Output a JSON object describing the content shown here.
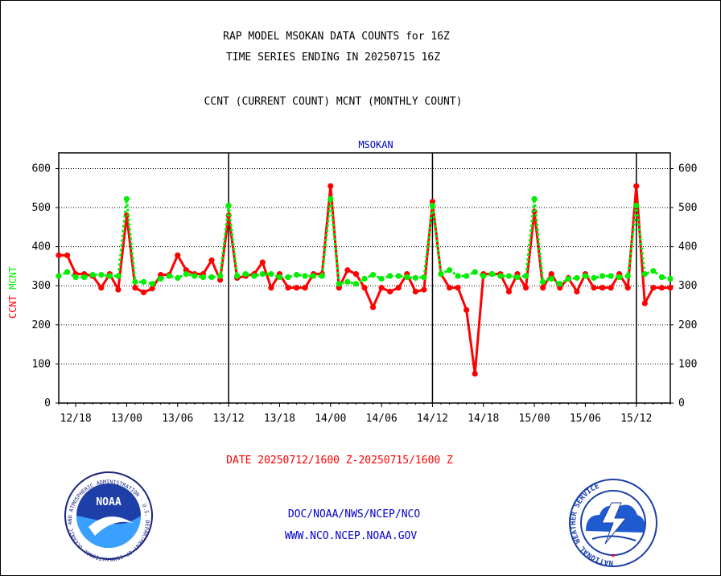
{
  "header": {
    "title_line1": "RAP MODEL MSOKAN DATA COUNTS for 16Z",
    "title_line2": "TIME SERIES ENDING IN 20250715 16Z",
    "subtitle": "CCNT (CURRENT COUNT) MCNT (MONTHLY COUNT)"
  },
  "footer": {
    "date_range": "DATE 20250712/1600 Z-20250715/1600 Z",
    "link1": "DOC/NOAA/NWS/NCEP/NCO",
    "link2": "WWW.NCO.NCEP.NOAA.GOV"
  },
  "logos": {
    "noaa_text": "NOAA",
    "noaa_ring": "NATIONAL OCEANIC AND ATMOSPHERIC ADMINISTRATION · U.S. DEPARTMENT OF COMMERCE ·",
    "nws_ring": "NATIONAL WEATHER SERVICE"
  },
  "colors": {
    "ccnt": "#ff0000",
    "mcnt": "#00ee00",
    "title": "#000000",
    "legend_text": "#0000cc",
    "footer_red": "#ff0000",
    "footer_blue": "#0000cc"
  },
  "chart_data": {
    "type": "line",
    "title": "MSOKAN",
    "ylabel_parts": [
      {
        "text": "CCNT",
        "color": "#ff0000"
      },
      {
        "text": "MCNT",
        "color": "#00ee00"
      }
    ],
    "ylim": [
      0,
      640
    ],
    "yticks": [
      0,
      100,
      200,
      300,
      400,
      500,
      600
    ],
    "xlim": [
      0,
      72
    ],
    "xticks": [
      {
        "pos": 2,
        "label": "12/18"
      },
      {
        "pos": 8,
        "label": "13/00"
      },
      {
        "pos": 14,
        "label": "13/06"
      },
      {
        "pos": 20,
        "label": "13/12"
      },
      {
        "pos": 26,
        "label": "13/18"
      },
      {
        "pos": 32,
        "label": "14/00"
      },
      {
        "pos": 38,
        "label": "14/06"
      },
      {
        "pos": 44,
        "label": "14/12"
      },
      {
        "pos": 50,
        "label": "14/18"
      },
      {
        "pos": 56,
        "label": "15/00"
      },
      {
        "pos": 62,
        "label": "15/06"
      },
      {
        "pos": 68,
        "label": "15/12"
      }
    ],
    "day_boundaries": [
      20,
      44,
      68
    ],
    "grid": true,
    "series": [
      {
        "name": "CCNT",
        "color": "#ff0000",
        "values": [
          378,
          378,
          330,
          330,
          325,
          295,
          330,
          290,
          480,
          295,
          283,
          293,
          328,
          328,
          378,
          340,
          330,
          330,
          365,
          315,
          480,
          320,
          325,
          330,
          360,
          295,
          330,
          295,
          295,
          295,
          330,
          330,
          555,
          295,
          340,
          330,
          295,
          245,
          295,
          285,
          295,
          330,
          285,
          290,
          515,
          330,
          295,
          295,
          238,
          75,
          330,
          330,
          330,
          285,
          330,
          295,
          490,
          295,
          330,
          295,
          320,
          285,
          330,
          295,
          295,
          295,
          330,
          295,
          555,
          255,
          295,
          295,
          295
        ]
      },
      {
        "name": "MCNT",
        "color": "#00ee00",
        "values": [
          325,
          335,
          322,
          322,
          328,
          328,
          325,
          325,
          522,
          310,
          310,
          305,
          318,
          325,
          320,
          330,
          325,
          322,
          322,
          325,
          505,
          325,
          330,
          325,
          330,
          330,
          322,
          322,
          328,
          325,
          325,
          325,
          522,
          305,
          310,
          305,
          318,
          328,
          318,
          325,
          325,
          322,
          320,
          322,
          505,
          330,
          340,
          325,
          325,
          335,
          325,
          330,
          325,
          325,
          322,
          325,
          522,
          310,
          318,
          305,
          318,
          320,
          325,
          320,
          325,
          325,
          322,
          325,
          505,
          330,
          338,
          322,
          318
        ]
      }
    ]
  }
}
